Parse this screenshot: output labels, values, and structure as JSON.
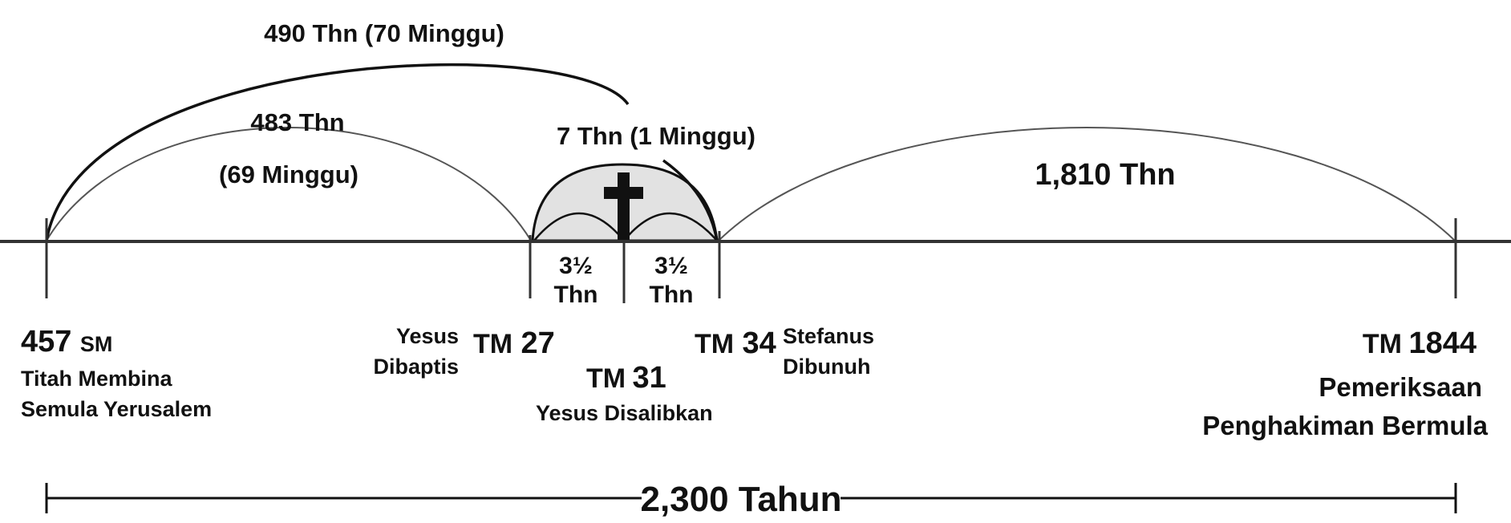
{
  "arcs": {
    "span_490": "490 Thn (70 Minggu)",
    "span_483_line1": "483 Thn",
    "span_483_line2": "(69 Minggu)",
    "span_7": "7 Thn (1 Minggu)",
    "span_1810": "1,810 Thn"
  },
  "half_weeks": {
    "first_value": "3½",
    "first_unit": "Thn",
    "second_value": "3½",
    "second_unit": "Thn"
  },
  "events": {
    "e457": {
      "year": "457",
      "era": "SM",
      "desc_line1": "Titah Membina",
      "desc_line2": "Semula Yerusalem"
    },
    "e27": {
      "era": "TM",
      "year": "27",
      "desc_line1": "Yesus",
      "desc_line2": "Dibaptis"
    },
    "e31": {
      "era": "TM",
      "year": "31",
      "desc_line1": "Yesus Disalibkan"
    },
    "e34": {
      "era": "TM",
      "year": "34",
      "desc_line1": "Stefanus",
      "desc_line2": "Dibunuh"
    },
    "e1844": {
      "era": "TM",
      "year": "1844",
      "desc_line1": "Pemeriksaan",
      "desc_line2": "Penghakiman Bermula"
    }
  },
  "total": "2,300 Tahun",
  "icons": {
    "cross": "cross-icon"
  },
  "colors": {
    "ink": "#111111",
    "arc_thin": "#555555",
    "shade": "#e2e2e2",
    "background": "#ffffff"
  }
}
